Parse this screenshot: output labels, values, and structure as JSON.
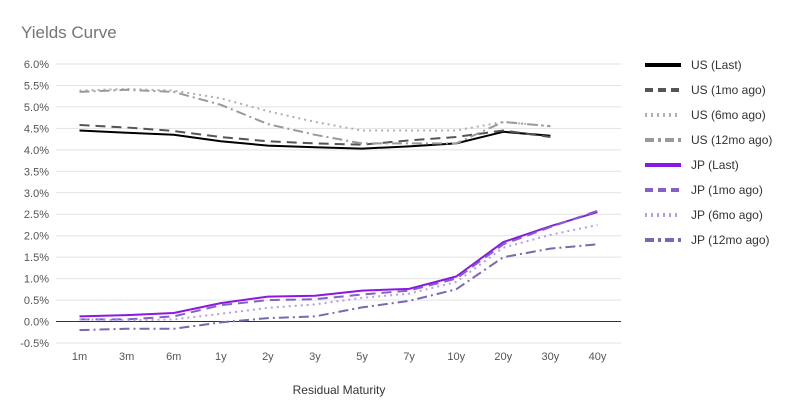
{
  "chart_data": {
    "type": "line",
    "title": "Yields Curve",
    "xlabel": "Residual Maturity",
    "ylabel": "",
    "ylim": [
      -0.5,
      6.0
    ],
    "y_ticks": [
      -0.5,
      0,
      0.5,
      1.0,
      1.5,
      2.0,
      2.5,
      3.0,
      3.5,
      4.0,
      4.5,
      5.0,
      5.5,
      6.0
    ],
    "y_tick_labels": [
      "-0.5%",
      "0.0%",
      "0.5%",
      "1.0%",
      "1.5%",
      "2.0%",
      "2.5%",
      "3.0%",
      "3.5%",
      "4.0%",
      "4.5%",
      "5.0%",
      "5.5%",
      "6.0%"
    ],
    "grid": true,
    "legend_position": "right",
    "categories": [
      "1m",
      "3m",
      "6m",
      "1y",
      "2y",
      "3y",
      "5y",
      "7y",
      "10y",
      "20y",
      "30y",
      "40y"
    ],
    "series": [
      {
        "name": "US (Last)",
        "color": "#000000",
        "dash": "solid",
        "values": [
          4.45,
          4.4,
          4.35,
          4.2,
          4.1,
          4.06,
          4.03,
          4.08,
          4.15,
          4.42,
          4.33,
          null
        ]
      },
      {
        "name": "US (1mo ago)",
        "color": "#555555",
        "dash": "dash",
        "values": [
          4.58,
          4.52,
          4.44,
          4.3,
          4.2,
          4.15,
          4.12,
          4.22,
          4.3,
          4.45,
          4.3,
          null
        ]
      },
      {
        "name": "US (6mo ago)",
        "color": "#b0b0b0",
        "dash": "dot",
        "values": [
          5.38,
          5.42,
          5.38,
          5.2,
          4.9,
          4.65,
          4.45,
          4.45,
          4.45,
          4.65,
          4.55,
          null
        ]
      },
      {
        "name": "US (12mo ago)",
        "color": "#9a9a9a",
        "dash": "dashdot",
        "values": [
          5.35,
          5.4,
          5.35,
          5.05,
          4.6,
          4.35,
          4.15,
          4.15,
          4.15,
          4.65,
          4.55,
          null
        ]
      },
      {
        "name": "JP (Last)",
        "color": "#8a17e6",
        "dash": "solid",
        "values": [
          0.12,
          0.15,
          0.2,
          0.43,
          0.58,
          0.6,
          0.72,
          0.76,
          1.05,
          1.85,
          2.22,
          2.55
        ]
      },
      {
        "name": "JP (1mo ago)",
        "color": "#8560c8",
        "dash": "dash",
        "values": [
          0.05,
          0.05,
          0.12,
          0.38,
          0.5,
          0.52,
          0.63,
          0.72,
          1.0,
          1.8,
          2.2,
          2.58
        ]
      },
      {
        "name": "JP (6mo ago)",
        "color": "#b69ce4",
        "dash": "dot",
        "values": [
          0.05,
          0.03,
          0.05,
          0.18,
          0.32,
          0.4,
          0.55,
          0.65,
          0.92,
          1.72,
          2.02,
          2.25
        ]
      },
      {
        "name": "JP (12mo ago)",
        "color": "#7a68b0",
        "dash": "dashdot",
        "values": [
          -0.2,
          -0.17,
          -0.17,
          -0.02,
          0.08,
          0.12,
          0.33,
          0.48,
          0.75,
          1.5,
          1.7,
          1.8
        ]
      }
    ]
  }
}
